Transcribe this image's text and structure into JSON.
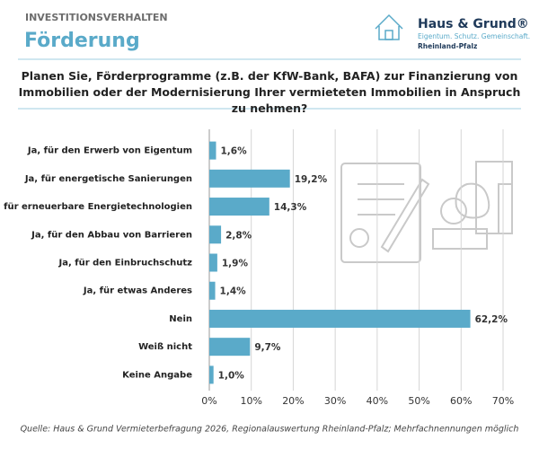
{
  "chart_data": {
    "type": "hbar",
    "kicker": "INVESTITIONSVERHALTEN",
    "title": "Förderung",
    "logo": {
      "name": "Haus & Grund®",
      "tagline": "Eigentum. Schutz. Gemeinschaft.",
      "region": "Rheinland-Pfalz"
    },
    "subtitle": "Planen Sie, Förderprogramme (z.B. der KfW-Bank, BAFA) zur Finanzierung von Immobilien oder der Modernisierung Ihrer vermieteten Immobilien in Anspruch zu nehmen?",
    "categories": [
      "Ja, für den Erwerb von Eigentum",
      "Ja, für energetische Sanierungen",
      "Ja, für erneuerbare Energietechnologien",
      "Ja, für den Abbau von Barrieren",
      "Ja, für den Einbruchschutz",
      "Ja, für etwas Anderes",
      "Nein",
      "Weiß nicht",
      "Keine Angabe"
    ],
    "values": [
      1.6,
      19.2,
      14.3,
      2.8,
      1.9,
      1.4,
      62.2,
      9.7,
      1.0
    ],
    "value_labels": [
      "1,6%",
      "19,2%",
      "14,3%",
      "2,8%",
      "1,9%",
      "1,4%",
      "62,2%",
      "9,7%",
      "1,0%"
    ],
    "color": "#5aaac9",
    "xlim": [
      0,
      70
    ],
    "xticks": [
      {
        "value": 0,
        "label": "0%"
      },
      {
        "value": 10,
        "label": "10%"
      },
      {
        "value": 20,
        "label": "20%"
      },
      {
        "value": 30,
        "label": "30%"
      },
      {
        "value": 40,
        "label": "40%"
      },
      {
        "value": 50,
        "label": "50%"
      },
      {
        "value": 60,
        "label": "60%"
      },
      {
        "value": 70,
        "label": "70%"
      }
    ],
    "grid": true,
    "source": "Quelle: Haus & Grund Vermieterbefragung 2026, Regionalauswertung Rheinland-Pfalz; Mehrfachnennungen möglich"
  }
}
